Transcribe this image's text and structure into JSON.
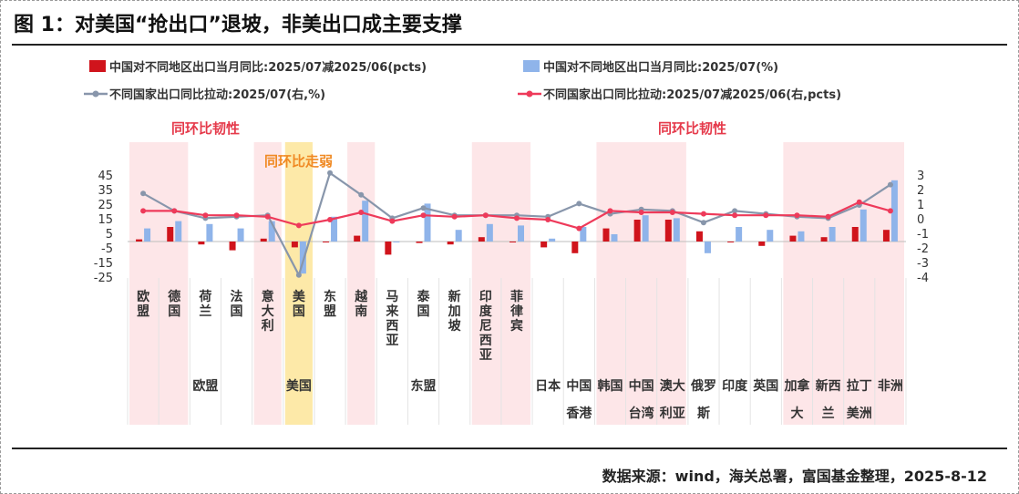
{
  "title": "图 1：对美国“抢出口”退坡，非美出口成主要支撑",
  "source": "数据来源：wind，海关总署，富国基金整理，2025-8-12",
  "colors": {
    "bar_change": "#d0141c",
    "bar_level": "#8fb4ea",
    "line_level": "#8896ab",
    "line_change": "#ee3a5a",
    "shade_pink": "#fde6e8",
    "shade_yellow": "#fde9a8"
  },
  "annotations": {
    "left_resilience": "同环比韧性",
    "right_resilience": "同环比韧性",
    "us_weak": "同环比走弱"
  },
  "chart_data": {
    "type": "bar",
    "legend": [
      "中国对不同地区出口当月同比:2025/07减2025/06(pcts)",
      "中国对不同地区出口当月同比:2025/07(%)",
      "不同国家出口同比拉动:2025/07(右,%)",
      "不同国家出口同比拉动:2025/07减2025/06(右,pcts)"
    ],
    "categories": [
      "欧盟",
      "德国",
      "荷兰",
      "法国",
      "意大利",
      "美国",
      "东盟",
      "越南",
      "马来西亚",
      "泰国",
      "新加坡",
      "印度尼西亚",
      "菲律宾",
      "日本",
      "中国香港",
      "韩国",
      "中国台湾",
      "澳大利亚",
      "俄罗斯",
      "印度",
      "英国",
      "加拿大",
      "新西兰",
      "拉丁美洲",
      "非洲"
    ],
    "category_labels": [
      "欧盟",
      "德国",
      "荷兰",
      "法国",
      "意大利",
      "美国",
      "东盟",
      "越南",
      "马来西亚",
      "泰国",
      "新加坡",
      "印度尼西亚",
      "菲律宾",
      "日本",
      "中国",
      "韩国",
      "中国",
      "澳大",
      "俄罗",
      "印度",
      "英国",
      "加拿",
      "新西",
      "拉丁",
      "非洲"
    ],
    "category_labels_line2": [
      "",
      "",
      "",
      "",
      "",
      "",
      "",
      "",
      "",
      "",
      "",
      "",
      "",
      "",
      "香港",
      "",
      "台湾",
      "利亚",
      "斯",
      "",
      "",
      "大",
      "兰",
      "美洲",
      ""
    ],
    "groups": [
      {
        "label": "欧盟",
        "from": 0,
        "to": 4
      },
      {
        "label": "美国",
        "from": 5,
        "to": 5
      },
      {
        "label": "东盟",
        "from": 6,
        "to": 12
      }
    ],
    "shaded_pink": [
      [
        0,
        1
      ],
      [
        4,
        4
      ],
      [
        7,
        7
      ],
      [
        11,
        12
      ],
      [
        15,
        17
      ],
      [
        21,
        24
      ]
    ],
    "shaded_yellow": [
      [
        5,
        5
      ]
    ],
    "left_axis": {
      "min": -25,
      "max": 45,
      "ticks": [
        -25,
        -15,
        -5,
        5,
        15,
        25,
        35,
        45
      ]
    },
    "right_axis": {
      "min": -4,
      "max": 3,
      "ticks": [
        -4,
        -3,
        -2,
        -1,
        0,
        1,
        2,
        3
      ]
    },
    "series": [
      {
        "name": "中国对不同地区出口当月同比:2025/07减2025/06(pcts)",
        "axis": "left",
        "kind": "bar",
        "values": [
          1.5,
          10,
          -2,
          -6,
          2,
          -4,
          0,
          4,
          -9,
          -1,
          -2,
          3,
          0,
          -4,
          -8,
          9,
          15,
          15,
          7,
          0,
          -3,
          4,
          3,
          10,
          8
        ]
      },
      {
        "name": "中国对不同地区出口当月同比:2025/07(%)",
        "axis": "left",
        "kind": "bar",
        "values": [
          9,
          14,
          12,
          9,
          14,
          -22,
          17,
          28,
          0,
          26,
          8,
          12,
          11,
          2,
          10,
          5,
          18,
          16,
          -8,
          10,
          8,
          7,
          10,
          22,
          42
        ]
      },
      {
        "name": "不同国家出口同比拉动:2025/07(右,%)",
        "axis": "right",
        "kind": "line",
        "values": [
          1.8,
          0.6,
          0.1,
          0.2,
          0.3,
          -3.8,
          3.2,
          1.7,
          0.1,
          0.8,
          0.3,
          0.3,
          0.3,
          0.2,
          1.1,
          0.4,
          0.7,
          0.6,
          -0.2,
          0.6,
          0.4,
          0.2,
          0.1,
          1.0,
          2.4
        ]
      },
      {
        "name": "不同国家出口同比拉动:2025/07减2025/06(右,pcts)",
        "axis": "right",
        "kind": "line",
        "values": [
          0.6,
          0.6,
          0.3,
          0.3,
          0.2,
          -0.4,
          0.0,
          0.5,
          -0.1,
          0.3,
          0.2,
          0.3,
          0.1,
          0.0,
          -0.6,
          0.6,
          0.5,
          0.5,
          0.4,
          0.3,
          0.3,
          0.3,
          0.2,
          1.2,
          0.6
        ]
      }
    ]
  }
}
